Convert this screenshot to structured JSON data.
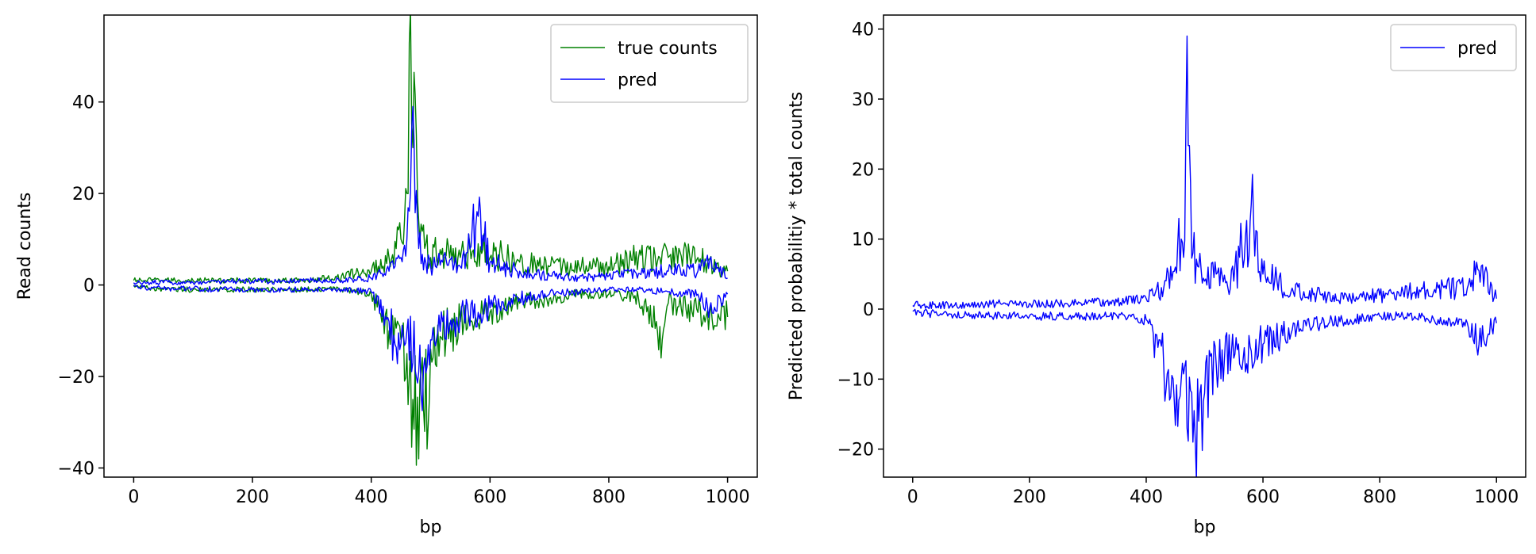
{
  "chart_data": [
    {
      "type": "line",
      "xlabel": "bp",
      "ylabel": "Read counts",
      "xlim": [
        -50,
        1050
      ],
      "ylim": [
        -42,
        59
      ],
      "xticks": [
        0,
        200,
        400,
        600,
        800,
        1000
      ],
      "yticks": [
        -40,
        -20,
        0,
        20,
        40
      ],
      "grid": false,
      "legend_position": "top-right",
      "legend": [
        "true counts",
        "pred"
      ],
      "series": [
        {
          "name": "true counts",
          "strand": "positive",
          "color": "#008000",
          "x": [
            0,
            50,
            100,
            150,
            200,
            250,
            300,
            350,
            400,
            430,
            450,
            460,
            465,
            470,
            475,
            480,
            490,
            500,
            520,
            550,
            580,
            600,
            620,
            650,
            700,
            750,
            800,
            850,
            900,
            950,
            1000
          ],
          "y": [
            1,
            1,
            1,
            1,
            1,
            1,
            1,
            2,
            3,
            6,
            10,
            20,
            48,
            30,
            55,
            14,
            8,
            6,
            8,
            6,
            9,
            6,
            7,
            5,
            4,
            4,
            4,
            6,
            6,
            6,
            3
          ]
        },
        {
          "name": "true counts",
          "strand": "negative",
          "color": "#008000",
          "x": [
            0,
            50,
            100,
            150,
            200,
            250,
            300,
            350,
            400,
            430,
            450,
            460,
            470,
            480,
            485,
            490,
            500,
            520,
            550,
            600,
            650,
            700,
            750,
            800,
            850,
            880,
            890,
            900,
            950,
            1000
          ],
          "y": [
            0,
            -1,
            -1,
            -1,
            -1,
            -1,
            -1,
            -1,
            -2,
            -10,
            -12,
            -15,
            -25,
            -38,
            -30,
            -32,
            -14,
            -12,
            -8,
            -6,
            -4,
            -3,
            -2,
            -2,
            -3,
            -8,
            -12,
            -4,
            -6,
            -7
          ]
        },
        {
          "name": "pred",
          "strand": "positive",
          "color": "#0000ff",
          "x": [
            0,
            50,
            100,
            150,
            200,
            250,
            300,
            350,
            400,
            430,
            450,
            460,
            465,
            470,
            475,
            480,
            490,
            500,
            520,
            550,
            580,
            600,
            620,
            650,
            700,
            750,
            800,
            850,
            900,
            950,
            970,
            1000
          ],
          "y": [
            0.5,
            0.5,
            0.5,
            0.8,
            0.8,
            0.8,
            1,
            1,
            1.5,
            3,
            6,
            10,
            14,
            39,
            16,
            8,
            6,
            4,
            5,
            4,
            15,
            5,
            4,
            3,
            2,
            1.5,
            2,
            2.5,
            3,
            3,
            5.5,
            1.5
          ]
        },
        {
          "name": "pred",
          "strand": "negative",
          "color": "#0000ff",
          "x": [
            0,
            50,
            100,
            150,
            200,
            250,
            300,
            350,
            400,
            430,
            440,
            460,
            470,
            480,
            485,
            490,
            500,
            520,
            550,
            580,
            600,
            650,
            700,
            750,
            800,
            850,
            900,
            950,
            970,
            1000
          ],
          "y": [
            -0.3,
            -0.8,
            -0.8,
            -1,
            -1,
            -1,
            -1,
            -1,
            -1.5,
            -8,
            -13,
            -10,
            -17,
            -19,
            -21,
            -16,
            -12,
            -8,
            -7,
            -6,
            -5,
            -3,
            -2,
            -1.5,
            -1,
            -1,
            -1.5,
            -2,
            -5,
            -2
          ]
        }
      ]
    },
    {
      "type": "line",
      "xlabel": "bp",
      "ylabel": "Predicted probabilitiy * total counts",
      "xlim": [
        -50,
        1050
      ],
      "ylim": [
        -24,
        42
      ],
      "xticks": [
        0,
        200,
        400,
        600,
        800,
        1000
      ],
      "yticks": [
        -20,
        -10,
        0,
        10,
        20,
        30,
        40
      ],
      "grid": false,
      "legend_position": "top-right",
      "legend": [
        "pred"
      ],
      "series": [
        {
          "name": "pred",
          "strand": "positive",
          "color": "#0000ff",
          "x": [
            0,
            50,
            100,
            150,
            200,
            250,
            300,
            350,
            400,
            430,
            450,
            460,
            465,
            470,
            475,
            480,
            490,
            500,
            520,
            550,
            580,
            600,
            620,
            650,
            700,
            750,
            800,
            850,
            900,
            950,
            970,
            1000
          ],
          "y": [
            0.5,
            0.5,
            0.5,
            0.8,
            0.8,
            0.8,
            1,
            1,
            1.5,
            3,
            6,
            10,
            14,
            39,
            16,
            8,
            6,
            4,
            5,
            4,
            15,
            5,
            4,
            3,
            2,
            1.5,
            2,
            2.5,
            3,
            3,
            5.5,
            1.5
          ]
        },
        {
          "name": "pred",
          "strand": "negative",
          "color": "#0000ff",
          "x": [
            0,
            50,
            100,
            150,
            200,
            250,
            300,
            350,
            400,
            430,
            440,
            460,
            470,
            480,
            485,
            490,
            500,
            520,
            550,
            580,
            600,
            650,
            700,
            750,
            800,
            850,
            900,
            950,
            970,
            1000
          ],
          "y": [
            -0.3,
            -0.8,
            -0.8,
            -1,
            -1,
            -1,
            -1,
            -1,
            -1.5,
            -8,
            -13,
            -10,
            -17,
            -19,
            -21,
            -16,
            -12,
            -8,
            -7,
            -6,
            -5,
            -3,
            -2,
            -1.5,
            -1,
            -1,
            -1.5,
            -2,
            -5,
            -2
          ]
        }
      ]
    }
  ]
}
